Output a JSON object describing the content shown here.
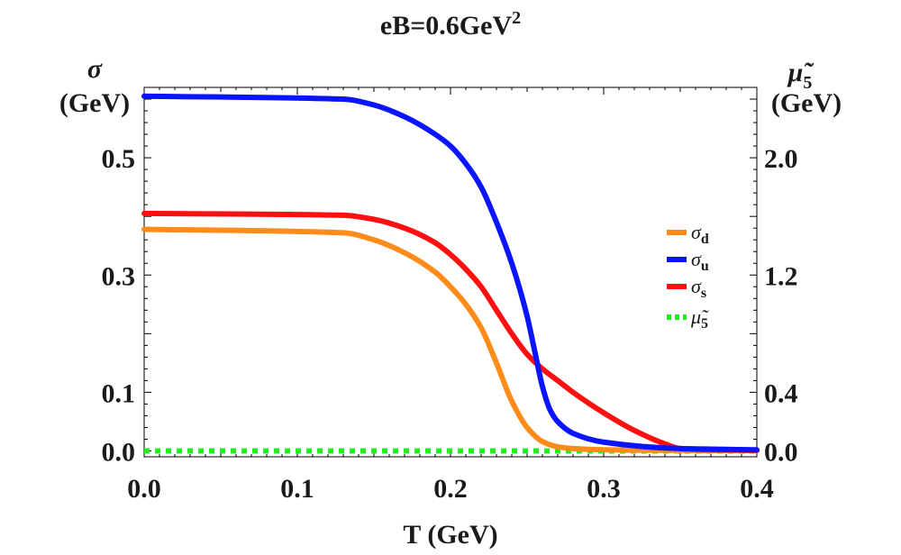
{
  "chart_data": {
    "type": "line",
    "title": "eB=0.6GeV",
    "title_superscript": "2",
    "xlabel": "T (GeV)",
    "ylabel_left": {
      "symbol": "σ",
      "unit": "(GeV)"
    },
    "ylabel_right": {
      "symbol": "μ̃",
      "subscript": "5",
      "unit": "(GeV)"
    },
    "xlim": [
      0.0,
      0.4
    ],
    "ylim_left": [
      -0.01,
      0.62
    ],
    "ylim_right": [
      -0.04,
      2.48
    ],
    "x_ticks": [
      {
        "value": 0.0,
        "label": "0.0"
      },
      {
        "value": 0.1,
        "label": "0.1"
      },
      {
        "value": 0.2,
        "label": "0.2"
      },
      {
        "value": 0.3,
        "label": "0.3"
      },
      {
        "value": 0.4,
        "label": "0.4"
      }
    ],
    "y_ticks_left": [
      {
        "value": 0.0,
        "label": "0.0"
      },
      {
        "value": 0.1,
        "label": "0.1"
      },
      {
        "value": 0.3,
        "label": "0.3"
      },
      {
        "value": 0.5,
        "label": "0.5"
      }
    ],
    "y_ticks_right": [
      {
        "value": 0.0,
        "label": "0.0"
      },
      {
        "value": 0.4,
        "label": "0.4"
      },
      {
        "value": 1.2,
        "label": "1.2"
      },
      {
        "value": 2.0,
        "label": "2.0"
      }
    ],
    "legend_position": "right",
    "series": [
      {
        "name": "σ_d",
        "label": "σ",
        "subscript": "d",
        "color": "#ff8c1a",
        "style": "solid",
        "x": [
          0.0,
          0.13,
          0.15,
          0.17,
          0.19,
          0.2,
          0.21,
          0.22,
          0.23,
          0.24,
          0.25,
          0.26,
          0.27,
          0.28,
          0.3,
          0.35,
          0.4
        ],
        "y": [
          0.378,
          0.372,
          0.36,
          0.338,
          0.305,
          0.28,
          0.25,
          0.21,
          0.15,
          0.085,
          0.04,
          0.016,
          0.007,
          0.004,
          0.002,
          0.001,
          0.001
        ]
      },
      {
        "name": "σ_u",
        "label": "σ",
        "subscript": "u",
        "color": "#0a14ff",
        "style": "solid",
        "x": [
          0.0,
          0.13,
          0.15,
          0.17,
          0.19,
          0.2,
          0.21,
          0.22,
          0.23,
          0.24,
          0.25,
          0.255,
          0.26,
          0.265,
          0.27,
          0.28,
          0.3,
          0.35,
          0.4
        ],
        "y": [
          0.605,
          0.6,
          0.59,
          0.57,
          0.54,
          0.52,
          0.49,
          0.45,
          0.39,
          0.32,
          0.23,
          0.17,
          0.11,
          0.07,
          0.05,
          0.03,
          0.015,
          0.004,
          0.002
        ]
      },
      {
        "name": "σ_s",
        "label": "σ",
        "subscript": "s",
        "color": "#ff0f0f",
        "style": "solid",
        "x": [
          0.0,
          0.13,
          0.15,
          0.17,
          0.19,
          0.2,
          0.21,
          0.22,
          0.23,
          0.24,
          0.25,
          0.26,
          0.27,
          0.28,
          0.3,
          0.32,
          0.34,
          0.35,
          0.37,
          0.4
        ],
        "y": [
          0.405,
          0.402,
          0.395,
          0.38,
          0.355,
          0.335,
          0.31,
          0.28,
          0.24,
          0.2,
          0.165,
          0.14,
          0.12,
          0.1,
          0.065,
          0.035,
          0.012,
          0.004,
          0.002,
          0.001
        ]
      },
      {
        "name": "μ̃_5",
        "label": "μ̃",
        "subscript": "5",
        "color": "#22ee22",
        "style": "dotted",
        "axis": "right",
        "x": [
          0.0,
          0.4
        ],
        "y": [
          0.0,
          0.0
        ]
      }
    ]
  }
}
